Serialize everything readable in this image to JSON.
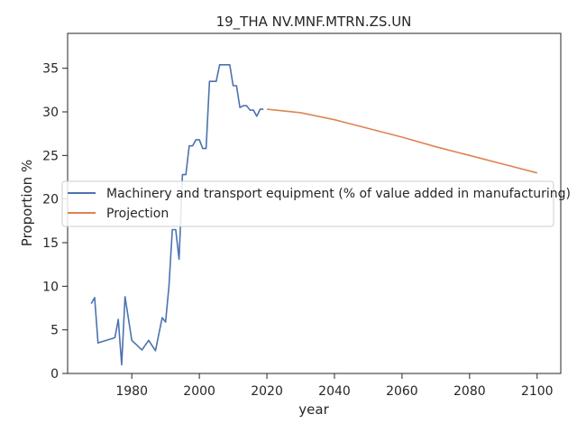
{
  "chart_data": {
    "type": "line",
    "title": "19_THA NV.MNF.MTRN.ZS.UN",
    "xlabel": "year",
    "ylabel": "Proportion %",
    "xlim": [
      1961,
      2107
    ],
    "ylim": [
      0,
      39
    ],
    "xticks": [
      1980,
      2000,
      2020,
      2040,
      2060,
      2080,
      2100
    ],
    "yticks": [
      0,
      5,
      10,
      15,
      20,
      25,
      30,
      35
    ],
    "grid": false,
    "legend_position": "center-left",
    "series": [
      {
        "name": "Machinery and transport equipment (% of value added in manufacturing)",
        "color": "#4c72b0",
        "points": [
          [
            1968,
            8.0
          ],
          [
            1969,
            8.7
          ],
          [
            1970,
            3.5
          ],
          [
            1975,
            4.1
          ],
          [
            1976,
            6.2
          ],
          [
            1977,
            1.0
          ],
          [
            1978,
            8.8
          ],
          [
            1980,
            3.8
          ],
          [
            1983,
            2.7
          ],
          [
            1985,
            3.8
          ],
          [
            1987,
            2.6
          ],
          [
            1989,
            6.4
          ],
          [
            1990,
            5.9
          ],
          [
            1991,
            10.0
          ],
          [
            1992,
            16.5
          ],
          [
            1993,
            16.5
          ],
          [
            1994,
            13.1
          ],
          [
            1995,
            22.8
          ],
          [
            1996,
            22.8
          ],
          [
            1997,
            26.1
          ],
          [
            1998,
            26.1
          ],
          [
            1999,
            26.8
          ],
          [
            2000,
            26.8
          ],
          [
            2001,
            25.8
          ],
          [
            2002,
            25.8
          ],
          [
            2003,
            33.5
          ],
          [
            2005,
            33.5
          ],
          [
            2006,
            35.4
          ],
          [
            2009,
            35.4
          ],
          [
            2010,
            33.0
          ],
          [
            2011,
            33.0
          ],
          [
            2012,
            30.5
          ],
          [
            2013,
            30.7
          ],
          [
            2014,
            30.7
          ],
          [
            2015,
            30.2
          ],
          [
            2016,
            30.2
          ],
          [
            2017,
            29.5
          ],
          [
            2018,
            30.3
          ],
          [
            2019,
            30.3
          ]
        ]
      },
      {
        "name": "Projection",
        "color": "#dd8452",
        "points": [
          [
            2020,
            30.3
          ],
          [
            2030,
            29.9
          ],
          [
            2040,
            29.1
          ],
          [
            2050,
            28.1
          ],
          [
            2060,
            27.1
          ],
          [
            2070,
            26.0
          ],
          [
            2080,
            25.0
          ],
          [
            2090,
            24.0
          ],
          [
            2100,
            23.0
          ]
        ]
      }
    ]
  }
}
